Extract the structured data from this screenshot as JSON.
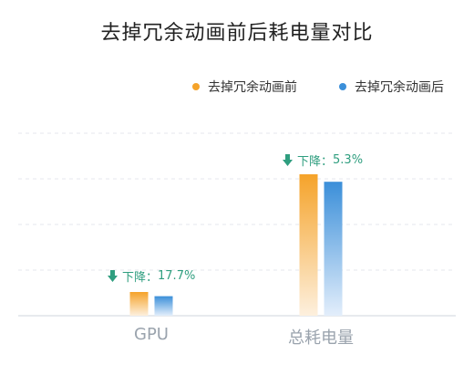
{
  "chart_data": {
    "type": "bar",
    "title": "去掉冗余动画前后耗电量对比",
    "categories": [
      "GPU",
      "总耗电量"
    ],
    "series": [
      {
        "name": "去掉冗余动画前",
        "values": [
          26,
          155
        ],
        "color": "#f5a32a"
      },
      {
        "name": "去掉冗余动画后",
        "values": [
          21.4,
          146.8
        ],
        "color": "#3b8fd9"
      }
    ],
    "annotations": [
      {
        "category": "GPU",
        "label": "下降：",
        "value": "17.7%"
      },
      {
        "category": "总耗电量",
        "label": "下降：",
        "value": "5.3%"
      }
    ],
    "ylim": [
      0,
      200
    ],
    "grid": true,
    "legend_position": "top-right"
  },
  "colors": {
    "annotation": "#2f9e7f",
    "axis_label": "#9aa3ad",
    "grid": "#e4e7ec"
  }
}
